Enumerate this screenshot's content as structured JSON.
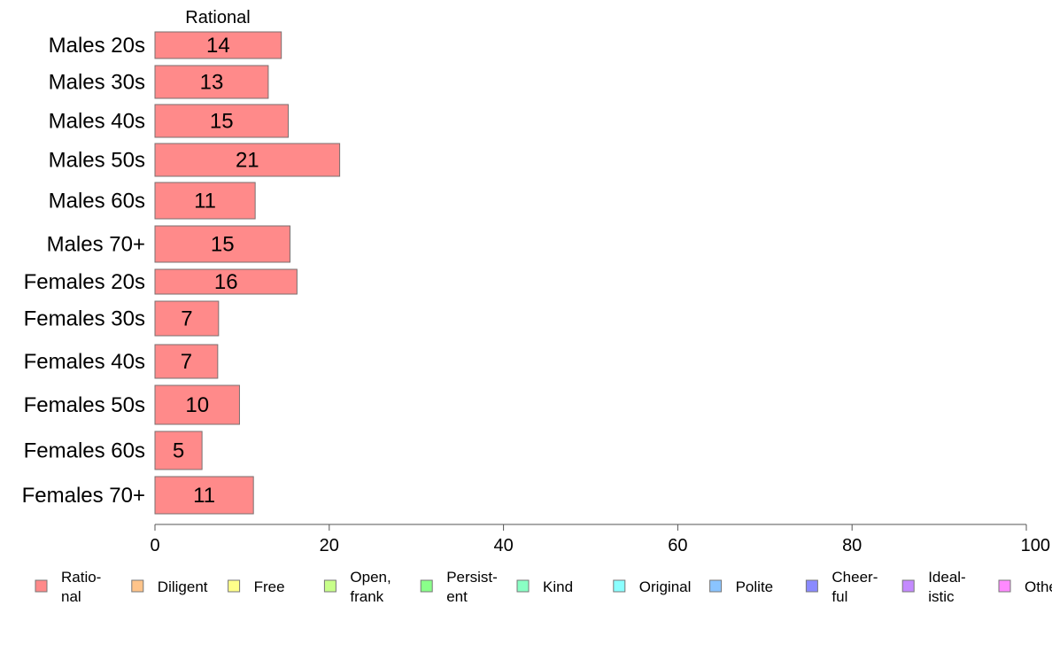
{
  "chart_data": {
    "type": "bar",
    "orientation": "horizontal",
    "stacked": true,
    "title": "Rational",
    "categories": [
      "Males 20s",
      "Males 30s",
      "Males 40s",
      "Males 50s",
      "Males 60s",
      "Males 70+",
      "Females 20s",
      "Females 30s",
      "Females 40s",
      "Females 50s",
      "Females 60s",
      "Females 70+"
    ],
    "series": [
      {
        "name": "Rational",
        "color": "#ff8a8a",
        "values": [
          14.5,
          13,
          15.3,
          21.2,
          11.5,
          15.5,
          16.3,
          7.3,
          7.2,
          9.7,
          5.4,
          11.3
        ]
      }
    ],
    "data_labels": [
      "14",
      "13",
      "15",
      "21",
      "11",
      "15",
      "16",
      "7",
      "7",
      "10",
      "5",
      "11"
    ],
    "xlim": [
      0,
      100
    ],
    "xticks": [
      "0",
      "20",
      "40",
      "60",
      "80",
      "100"
    ],
    "grid": false,
    "legend": {
      "placement": "bottom",
      "items": [
        {
          "line1": "Ratio-",
          "line2": "nal",
          "color": "#ff8a8a"
        },
        {
          "line1": "Diligent",
          "line2": "",
          "color": "#ffc48a"
        },
        {
          "line1": "Free",
          "line2": "",
          "color": "#ffff8a"
        },
        {
          "line1": "Open,",
          "line2": "frank",
          "color": "#c8ff8a"
        },
        {
          "line1": "Persist-",
          "line2": "ent",
          "color": "#8aff8a"
        },
        {
          "line1": "Kind",
          "line2": "",
          "color": "#8affc4"
        },
        {
          "line1": "Original",
          "line2": "",
          "color": "#8affff"
        },
        {
          "line1": "Polite",
          "line2": "",
          "color": "#8ac4ff"
        },
        {
          "line1": "Cheer-",
          "line2": "ful",
          "color": "#8a8aff"
        },
        {
          "line1": "Ideal-",
          "line2": "istic",
          "color": "#c48aff"
        },
        {
          "line1": "Other",
          "line2": "",
          "color": "#ff8aff"
        }
      ]
    }
  }
}
